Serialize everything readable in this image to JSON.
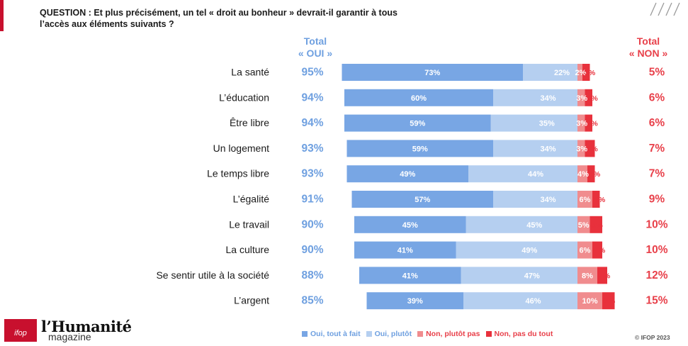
{
  "question": {
    "line1": "QUESTION : Et plus précisément, un tel « droit au bonheur » devrait-il garantir à tous",
    "line2": "l’accès aux éléments suivants ?"
  },
  "headers": {
    "oui_line1": "Total",
    "oui_line2": "« OUI »",
    "non_line1": "Total",
    "non_line2": "« NON »"
  },
  "colors": {
    "oui_tout_a_fait": "#78a6e4",
    "oui_plutot": "#b5cff0",
    "non_plutot_pas": "#f08c8e",
    "non_pas_du_tout": "#e8313c",
    "total_oui": "#6fa0e0",
    "total_non": "#e8404a",
    "accent": "#c8102e"
  },
  "chart_data": {
    "type": "bar",
    "orientation": "horizontal",
    "stacked": true,
    "diverging": true,
    "categories": [
      "La santé",
      "L’éducation",
      "Être libre",
      "Un logement",
      "Le temps libre",
      "L’égalité",
      "Le travail",
      "La culture",
      "Se sentir utile à la société",
      "L’argent"
    ],
    "series": [
      {
        "name": "Oui, tout à fait",
        "values": [
          73,
          60,
          59,
          59,
          49,
          57,
          45,
          41,
          41,
          39
        ]
      },
      {
        "name": "Oui, plutôt",
        "values": [
          22,
          34,
          35,
          34,
          44,
          34,
          45,
          49,
          47,
          46
        ]
      },
      {
        "name": "Non, plutôt pas",
        "values": [
          2,
          3,
          3,
          3,
          4,
          6,
          5,
          6,
          8,
          10
        ]
      },
      {
        "name": "Non, pas du tout",
        "values": [
          3,
          3,
          3,
          4,
          3,
          3,
          5,
          4,
          4,
          5
        ]
      }
    ],
    "total_oui": [
      "95%",
      "94%",
      "94%",
      "93%",
      "93%",
      "91%",
      "90%",
      "90%",
      "88%",
      "85%"
    ],
    "total_non": [
      "5%",
      "6%",
      "6%",
      "7%",
      "7%",
      "9%",
      "10%",
      "10%",
      "12%",
      "15%"
    ],
    "unit": "%",
    "legend_position": "bottom"
  },
  "legend": [
    {
      "label": "Oui, tout à fait",
      "color": "#78a6e4"
    },
    {
      "label": "Oui, plutôt",
      "color": "#b5cff0"
    },
    {
      "label": "Non, plutôt pas",
      "color": "#f08c8e"
    },
    {
      "label": "Non, pas du tout",
      "color": "#e8313c"
    }
  ],
  "footer": {
    "copyright": "© IFOP 2023",
    "ifop_logo": "IFOP",
    "brand_name": "l’Humanité",
    "brand_sub": "magazine"
  }
}
